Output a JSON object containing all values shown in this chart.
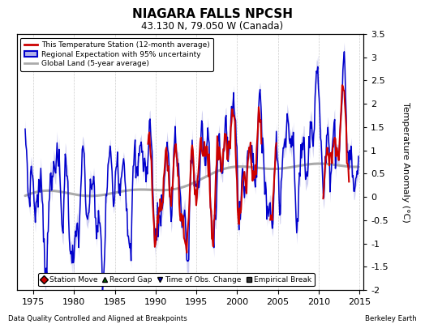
{
  "title": "NIAGARA FALLS NPCSH",
  "subtitle": "43.130 N, 79.050 W (Canada)",
  "ylabel": "Temperature Anomaly (°C)",
  "xlabel_left": "Data Quality Controlled and Aligned at Breakpoints",
  "xlabel_right": "Berkeley Earth",
  "xlim": [
    1973.0,
    2015.5
  ],
  "ylim": [
    -2.0,
    3.5
  ],
  "yticks": [
    -2.0,
    -1.5,
    -1.0,
    -0.5,
    0.0,
    0.5,
    1.0,
    1.5,
    2.0,
    2.5,
    3.0,
    3.5
  ],
  "xticks": [
    1975,
    1980,
    1985,
    1990,
    1995,
    2000,
    2005,
    2010,
    2015
  ],
  "bg_color": "#ffffff",
  "grid_color": "#cccccc",
  "red_color": "#cc0000",
  "blue_color": "#0000cc",
  "blue_fill_color": "#b0b0e8",
  "gray_color": "#aaaaaa",
  "legend_items": [
    "This Temperature Station (12-month average)",
    "Regional Expectation with 95% uncertainty",
    "Global Land (5-year average)"
  ],
  "bottom_legend": [
    {
      "marker": "D",
      "color": "#cc0000",
      "label": "Station Move"
    },
    {
      "marker": "^",
      "color": "#006600",
      "label": "Record Gap"
    },
    {
      "marker": "v",
      "color": "#0000cc",
      "label": "Time of Obs. Change"
    },
    {
      "marker": "s",
      "color": "#333333",
      "label": "Empirical Break"
    }
  ]
}
